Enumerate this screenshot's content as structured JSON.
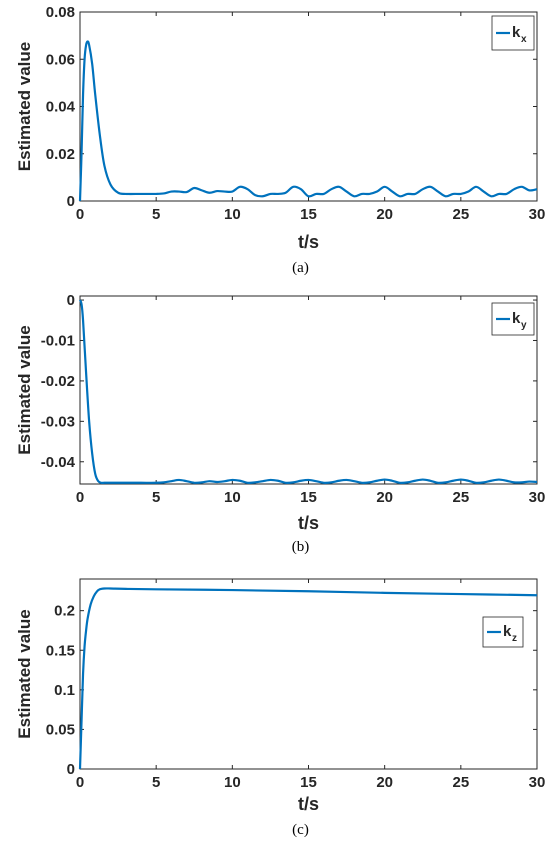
{
  "chart_data": [
    {
      "type": "line",
      "ylabel": "Estimated value",
      "xlabel": "t/s",
      "caption": "(a)",
      "legend": {
        "name": "k",
        "sub": "x",
        "position": "top-right"
      },
      "xlim": [
        0,
        30
      ],
      "ylim": [
        0,
        0.08
      ],
      "xticks": [
        "0",
        "5",
        "10",
        "15",
        "20",
        "25",
        "30"
      ],
      "yticks": [
        "0",
        "0.02",
        "0.04",
        "0.06",
        "0.08"
      ],
      "color": "#0072BD",
      "x": [
        0,
        0.1,
        0.2,
        0.3,
        0.4,
        0.5,
        0.6,
        0.8,
        1.0,
        1.3,
        1.6,
        2.0,
        2.5,
        3,
        4,
        5,
        5.5,
        6,
        6.5,
        7,
        7.5,
        8,
        8.5,
        9,
        9.5,
        10,
        10.5,
        11,
        11.5,
        12,
        12.5,
        13,
        13.5,
        14,
        14.5,
        15,
        15.5,
        16,
        16.5,
        17,
        17.5,
        18,
        18.5,
        19,
        19.5,
        20,
        20.5,
        21,
        21.5,
        22,
        22.5,
        23,
        23.5,
        24,
        24.5,
        25,
        25.5,
        26,
        26.5,
        27,
        27.5,
        28,
        28.5,
        29,
        29.5,
        30
      ],
      "y": [
        0,
        0.02,
        0.045,
        0.06,
        0.066,
        0.0675,
        0.066,
        0.058,
        0.045,
        0.028,
        0.015,
        0.007,
        0.0035,
        0.003,
        0.003,
        0.003,
        0.0032,
        0.004,
        0.004,
        0.0038,
        0.0055,
        0.0045,
        0.0035,
        0.0042,
        0.004,
        0.004,
        0.006,
        0.005,
        0.0025,
        0.002,
        0.003,
        0.003,
        0.0035,
        0.006,
        0.005,
        0.002,
        0.003,
        0.003,
        0.005,
        0.006,
        0.004,
        0.002,
        0.003,
        0.003,
        0.004,
        0.006,
        0.004,
        0.002,
        0.003,
        0.003,
        0.005,
        0.006,
        0.004,
        0.002,
        0.003,
        0.003,
        0.004,
        0.006,
        0.004,
        0.002,
        0.003,
        0.003,
        0.005,
        0.006,
        0.0045,
        0.005
      ]
    },
    {
      "type": "line",
      "ylabel": "Estimated value",
      "xlabel": "t/s",
      "caption": "(b)",
      "legend": {
        "name": "k",
        "sub": "y",
        "position": "top-right"
      },
      "xlim": [
        0,
        30
      ],
      "ylim": [
        -0.0455,
        0.001
      ],
      "xticks": [
        "0",
        "5",
        "10",
        "15",
        "20",
        "25",
        "30"
      ],
      "yticks": [
        "0",
        "-0.01",
        "-0.02",
        "-0.03",
        "-0.04"
      ],
      "color": "#0072BD",
      "x": [
        0,
        0.1,
        0.2,
        0.4,
        0.6,
        0.8,
        1.0,
        1.2,
        1.4,
        1.6,
        2,
        3,
        4,
        5,
        5.5,
        6,
        6.5,
        7,
        7.5,
        8,
        8.5,
        9,
        9.5,
        10,
        10.5,
        11,
        11.5,
        12,
        12.5,
        13,
        13.5,
        14,
        14.5,
        15,
        15.5,
        16,
        16.5,
        17,
        17.5,
        18,
        18.5,
        19,
        19.5,
        20,
        20.5,
        21,
        21.5,
        22,
        22.5,
        23,
        23.5,
        24,
        24.5,
        25,
        25.5,
        26,
        26.5,
        27,
        27.5,
        28,
        28.5,
        29,
        29.5,
        30
      ],
      "y": [
        0,
        -0.001,
        -0.005,
        -0.018,
        -0.03,
        -0.038,
        -0.043,
        -0.0448,
        -0.0452,
        -0.0452,
        -0.0452,
        -0.0452,
        -0.0452,
        -0.0452,
        -0.0451,
        -0.0448,
        -0.0445,
        -0.0448,
        -0.0452,
        -0.0451,
        -0.0448,
        -0.045,
        -0.0448,
        -0.0445,
        -0.0447,
        -0.0452,
        -0.0451,
        -0.0448,
        -0.0445,
        -0.0447,
        -0.0452,
        -0.0451,
        -0.0447,
        -0.0445,
        -0.0448,
        -0.0452,
        -0.0451,
        -0.0447,
        -0.0445,
        -0.0448,
        -0.0452,
        -0.0451,
        -0.0447,
        -0.0444,
        -0.0447,
        -0.0452,
        -0.0451,
        -0.0447,
        -0.0444,
        -0.0447,
        -0.0452,
        -0.0451,
        -0.0447,
        -0.0444,
        -0.0447,
        -0.0452,
        -0.0451,
        -0.0447,
        -0.0444,
        -0.0447,
        -0.0451,
        -0.0451,
        -0.0449,
        -0.045
      ]
    },
    {
      "type": "line",
      "ylabel": "Estimated value",
      "xlabel": "t/s",
      "caption": "(c)",
      "legend": {
        "name": "k",
        "sub": "z",
        "position": "top-right"
      },
      "xlim": [
        0,
        30
      ],
      "ylim": [
        0,
        0.24
      ],
      "xticks": [
        "0",
        "5",
        "10",
        "15",
        "20",
        "25",
        "30"
      ],
      "yticks": [
        "0",
        "0.05",
        "0.1",
        "0.15",
        "0.2"
      ],
      "color": "#0072BD",
      "x": [
        0,
        0.1,
        0.2,
        0.3,
        0.4,
        0.5,
        0.7,
        0.9,
        1.1,
        1.3,
        1.6,
        2,
        3,
        5,
        10,
        15,
        20,
        25,
        30
      ],
      "y": [
        0,
        0.06,
        0.12,
        0.155,
        0.175,
        0.19,
        0.208,
        0.218,
        0.224,
        0.227,
        0.228,
        0.228,
        0.2275,
        0.227,
        0.226,
        0.2245,
        0.2225,
        0.221,
        0.2195
      ]
    }
  ]
}
